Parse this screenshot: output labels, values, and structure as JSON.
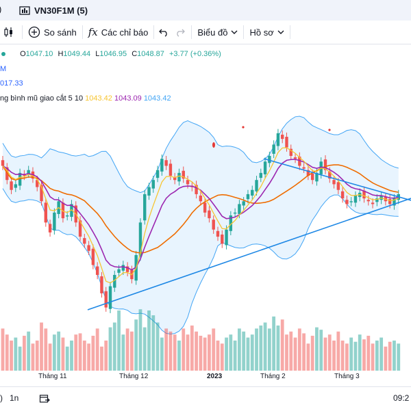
{
  "tab": {
    "prev_fragment": ")",
    "title": "VN30F1M (5)"
  },
  "toolbar": {
    "compare_label": "So sánh",
    "indicators_label": "Các chỉ báo",
    "chart_label": "Biểu đồ",
    "profile_label": "Hồ sơ"
  },
  "legend": {
    "ohlc": {
      "o_label": "O",
      "o": "1047.10",
      "h_label": "H",
      "h": "1049.44",
      "l_label": "L",
      "l": "1046.95",
      "c_label": "C",
      "c": "1048.87",
      "change": "+3.77 (+0.36%)"
    },
    "line2": "M",
    "line3": "017.33",
    "indicator_name": "ng bình mũ giao cắt 5 10",
    "ind_v1": "1043.42",
    "ind_v2": "1043.09",
    "ind_v3": "1043.42"
  },
  "x_axis": {
    "labels": [
      "Tháng 11",
      "Tháng 12",
      "2023",
      "Tháng 2",
      "Tháng 3"
    ]
  },
  "bottom_bar": {
    "range_label": "1n",
    "time": "09:2"
  },
  "colors": {
    "up": "#26a69a",
    "down": "#ef5350",
    "ema_fast": "#f7c531",
    "ema_slow": "#9c27b0",
    "ma": "#ef6c00",
    "band": "#42a5f5",
    "trendline": "#1e88e5"
  },
  "chart_data": {
    "type": "candlestick",
    "closes": [
      1085,
      1075,
      1068,
      1072,
      1080,
      1078,
      1082,
      1076,
      1070,
      1060,
      1045,
      1038,
      1052,
      1060,
      1048,
      1050,
      1058,
      1045,
      1035,
      1030,
      1025,
      1015,
      1008,
      995,
      985,
      1000,
      1008,
      1012,
      1015,
      1010,
      1005,
      1022,
      1045,
      1065,
      1070,
      1075,
      1082,
      1090,
      1085,
      1078,
      1075,
      1080,
      1076,
      1072,
      1070,
      1065,
      1060,
      1052,
      1048,
      1040,
      1035,
      1030,
      1040,
      1050,
      1052,
      1058,
      1060,
      1065,
      1068,
      1075,
      1080,
      1088,
      1092,
      1100,
      1108,
      1104,
      1098,
      1092,
      1090,
      1085,
      1083,
      1078,
      1075,
      1080,
      1088,
      1082,
      1076,
      1072,
      1068,
      1062,
      1058,
      1060,
      1064,
      1066,
      1062,
      1060,
      1058,
      1062,
      1064,
      1060,
      1058,
      1062,
      1065
    ],
    "volumes": [
      70,
      60,
      50,
      55,
      40,
      58,
      65,
      45,
      50,
      80,
      70,
      45,
      60,
      65,
      55,
      40,
      50,
      60,
      62,
      50,
      45,
      58,
      70,
      40,
      50,
      72,
      80,
      100,
      60,
      70,
      65,
      85,
      102,
      72,
      100,
      92,
      80,
      55,
      70,
      65,
      60,
      50,
      70,
      60,
      75,
      65,
      58,
      55,
      60,
      70,
      50,
      45,
      55,
      60,
      50,
      70,
      65,
      55,
      60,
      70,
      75,
      80,
      70,
      90,
      75,
      85,
      60,
      65,
      55,
      70,
      62,
      45,
      58,
      72,
      68,
      55,
      60,
      50,
      65,
      50,
      45,
      55,
      48,
      60,
      52,
      58,
      45,
      50,
      55,
      40,
      48,
      50,
      45
    ],
    "x_tick_labels": [
      "Tháng 11",
      "Tháng 12",
      "2023",
      "Tháng 2",
      "Tháng 3"
    ]
  }
}
